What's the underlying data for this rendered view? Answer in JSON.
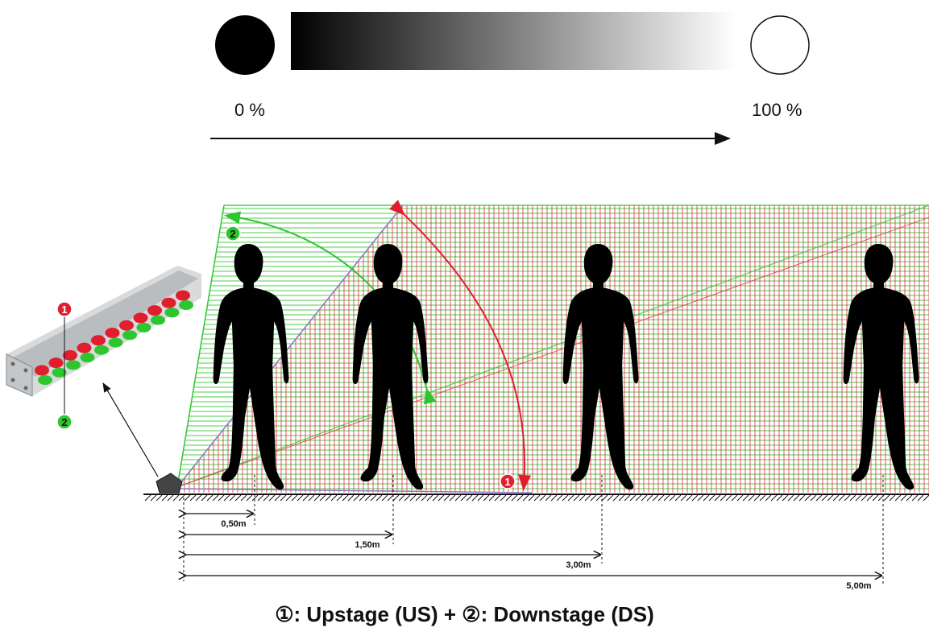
{
  "gradient": {
    "min_label": "0 %",
    "max_label": "100 %",
    "colors": {
      "dark": "#000000",
      "light": "#ffffff"
    }
  },
  "markers": {
    "upstage": "1",
    "downstage": "2"
  },
  "distances": [
    "0,50m",
    "1,50m",
    "3,00m",
    "5,00m"
  ],
  "caption": "①: Upstage (US) + ②: Downstage (DS)",
  "colors": {
    "upstage": "#e01e2e",
    "downstage": "#2ec62e"
  }
}
